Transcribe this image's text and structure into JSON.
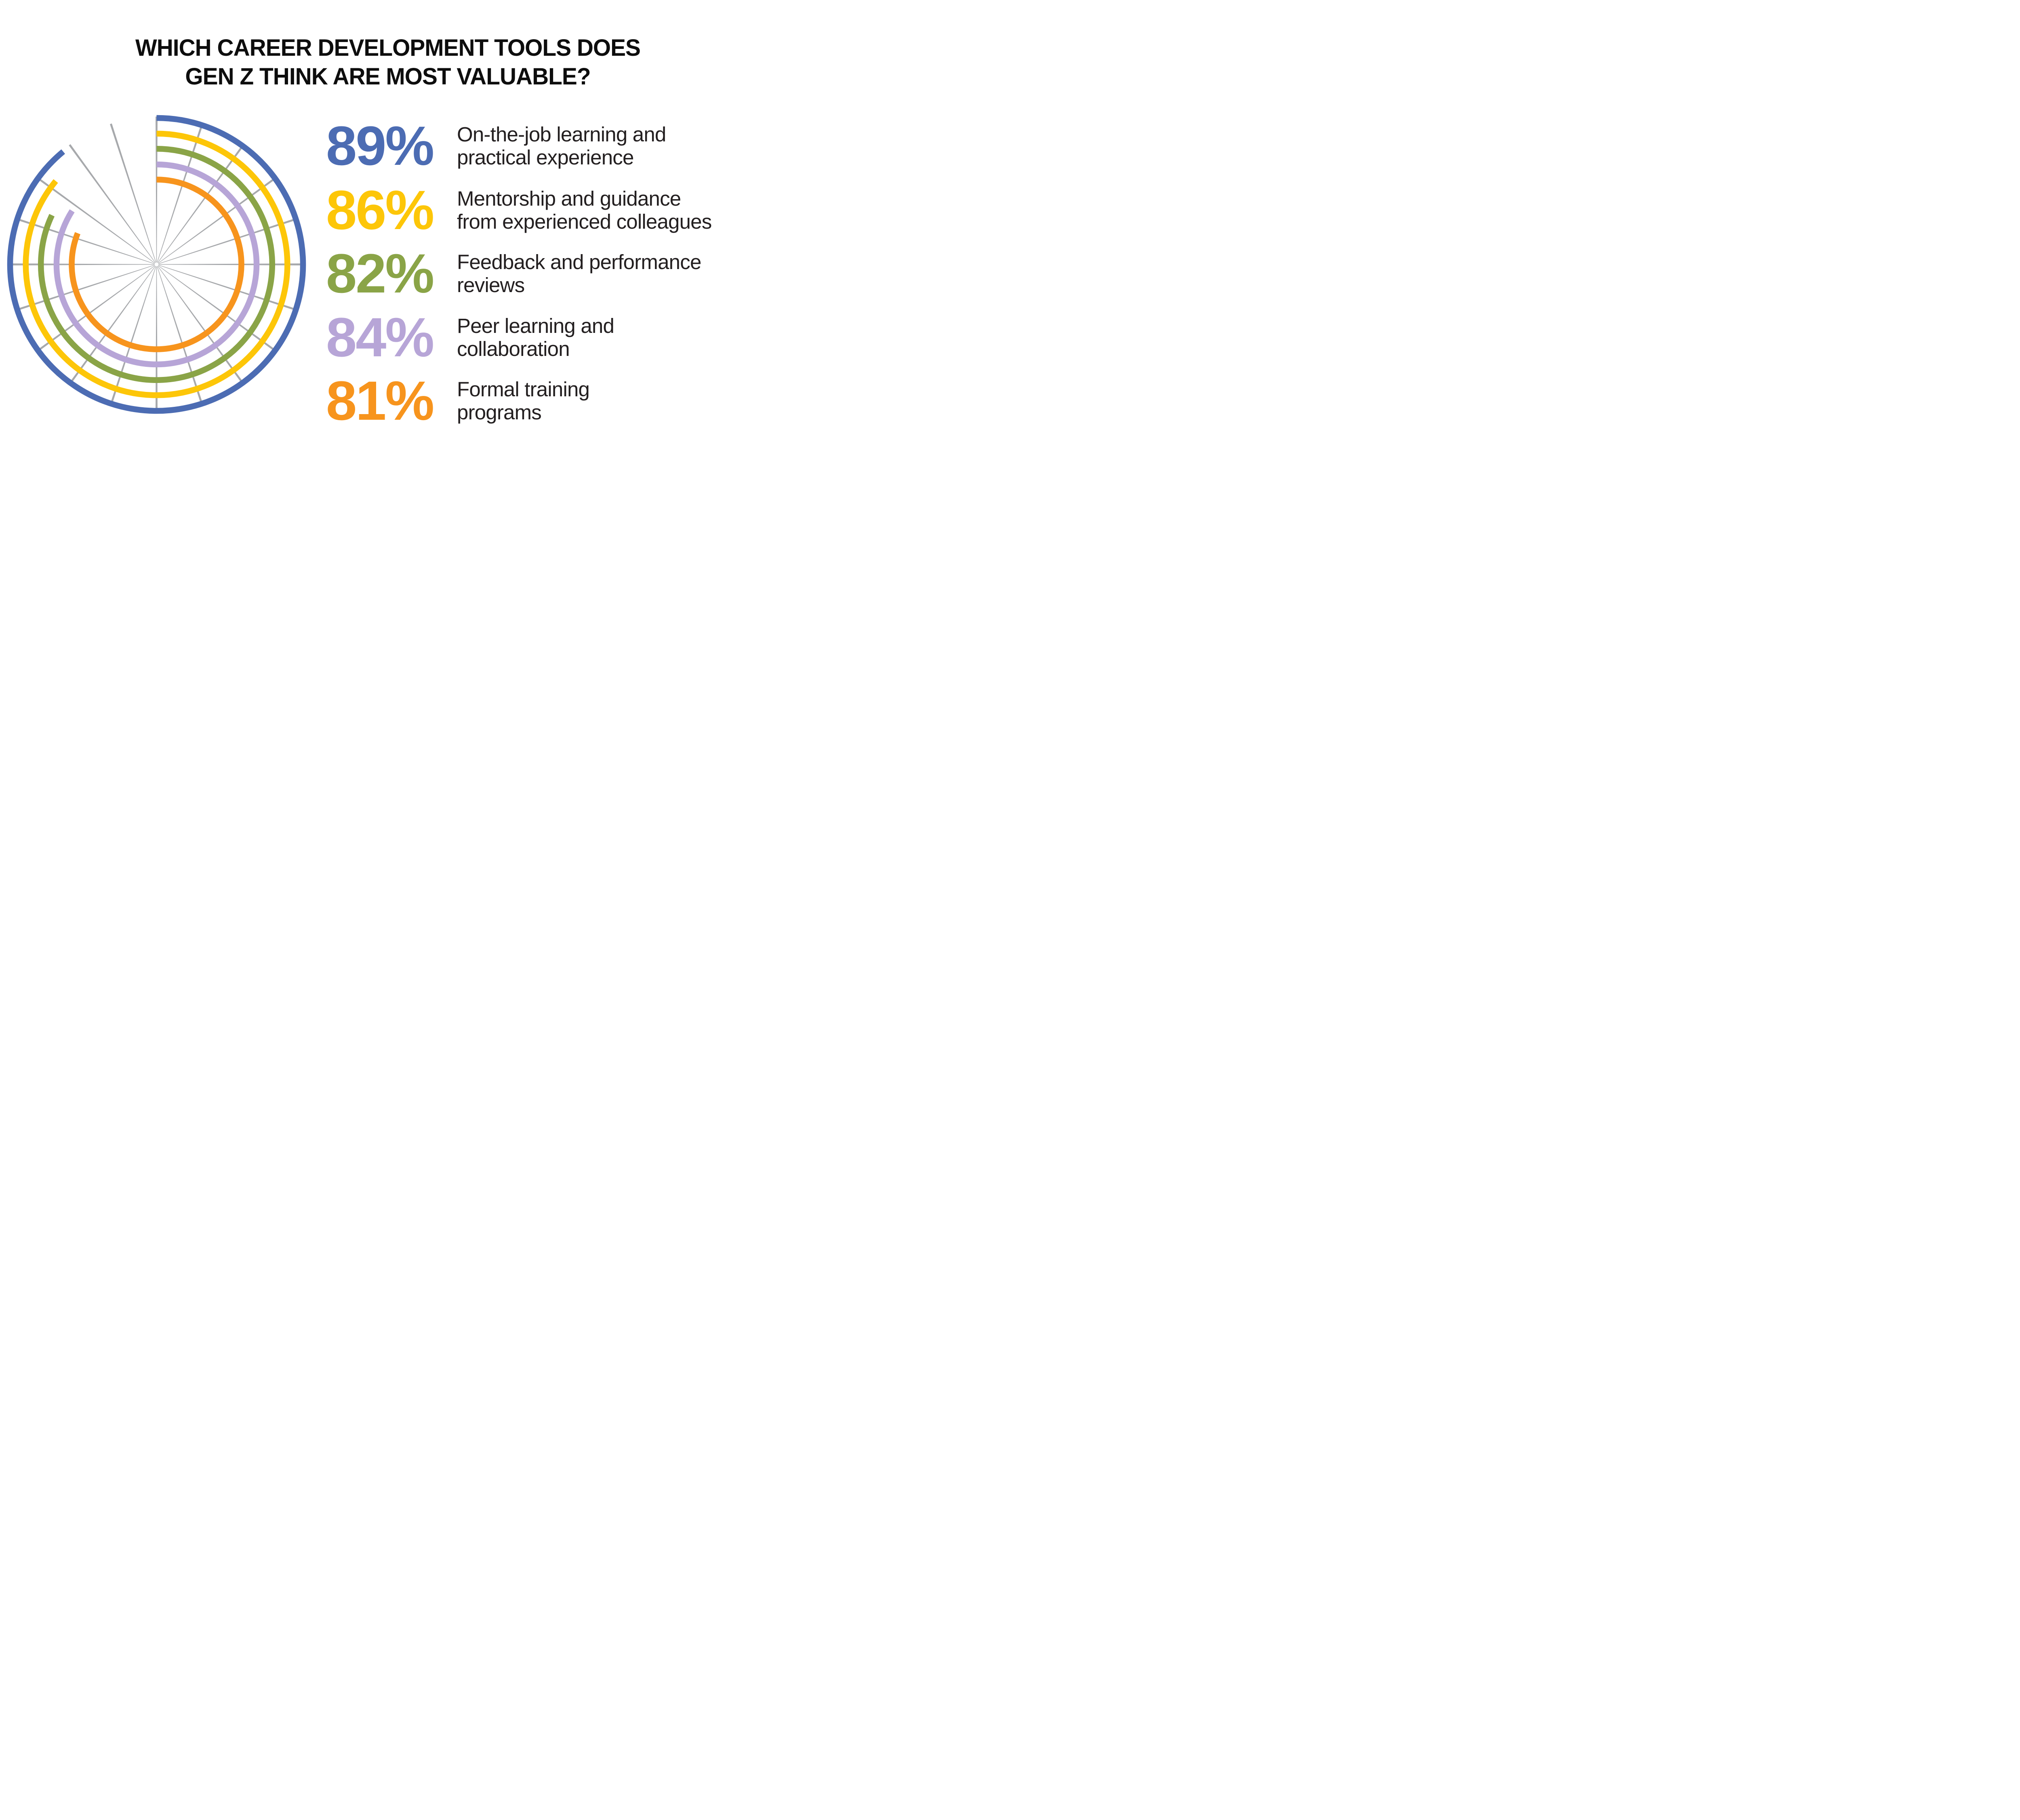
{
  "page": {
    "background": "#FFFFFF"
  },
  "title": {
    "lines": [
      "WHICH CAREER DEVELOPMENT TOOLS DOES",
      "GEN Z THINK ARE MOST VALUABLE?"
    ],
    "color": "#0D0D0D"
  },
  "stats": [
    {
      "value_label": "89%",
      "color": "#4C6CB3",
      "label_lines": [
        "On-the-job learning and",
        "practical experience"
      ]
    },
    {
      "value_label": "86%",
      "color": "#FDC608",
      "label_lines": [
        "Mentorship and guidance",
        "from experienced colleagues"
      ]
    },
    {
      "value_label": "82%",
      "color": "#8AA447",
      "label_lines": [
        "Feedback and performance",
        "reviews"
      ]
    },
    {
      "value_label": "84%",
      "color": "#B7A5D7",
      "label_lines": [
        "Peer learning and",
        "collaboration"
      ]
    },
    {
      "value_label": "81%",
      "color": "#F7941D",
      "label_lines": [
        "Formal training",
        "programs"
      ]
    }
  ],
  "chart_data": {
    "type": "radial-bar",
    "title": "Which career development tools does Gen Z think are most valuable?",
    "unit": "percent",
    "max_value": 100,
    "start_angle_deg": 0,
    "direction": "clockwise",
    "rings_order": "outer_to_inner",
    "series": [
      {
        "name": "On-the-job learning and practical experience",
        "value": 89,
        "color": "#4C6CB3"
      },
      {
        "name": "Mentorship and guidance from experienced colleagues",
        "value": 86,
        "color": "#FDC608"
      },
      {
        "name": "Feedback and performance reviews",
        "value": 82,
        "color": "#8AA447"
      },
      {
        "name": "Peer learning and collaboration",
        "value": 84,
        "color": "#B7A5D7"
      },
      {
        "name": "Formal training programs",
        "value": 81,
        "color": "#F7941D"
      }
    ],
    "grid": {
      "spoke_count": 20,
      "spoke_angle_step_deg": 18,
      "color": "#A7A9AC",
      "show_rings": false
    },
    "layout": {
      "svg_size": 745,
      "center": [
        372.5,
        372.5
      ],
      "ring_radii": [
        362.5,
        323.75,
        286.25,
        247.5,
        210
      ],
      "ring_stroke": 14.5,
      "spoke_inner_radius": 5,
      "spoke_outer_radius": 366,
      "spoke_inner_width": 1.2,
      "spoke_outer_width": 5
    }
  }
}
